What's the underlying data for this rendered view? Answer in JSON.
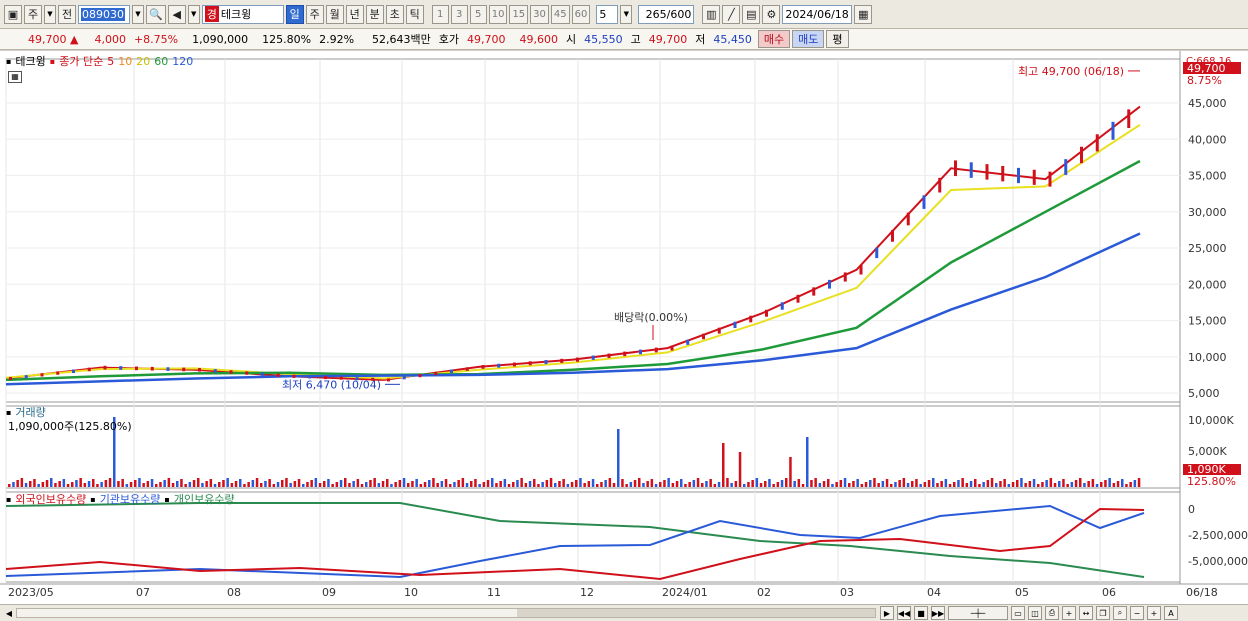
{
  "toolbar": {
    "market": "주",
    "period_btn": "전",
    "code": "089030",
    "stock_badge": "경",
    "stock_name": "테크윙",
    "periods": [
      "일",
      "주",
      "월",
      "년",
      "분",
      "초",
      "틱"
    ],
    "minute_options": [
      "1",
      "3",
      "5",
      "10",
      "15",
      "30",
      "45",
      "60"
    ],
    "minute_value": "5",
    "count_current": "265",
    "count_total": "/600",
    "date": "2024/06/18"
  },
  "quote": {
    "price": "49,700",
    "change_arrow": "▲",
    "change": "4,000",
    "change_pct": "+8.75%",
    "volume": "1,090,000",
    "volume_ratio": "125.80%",
    "turnover": "2.92%",
    "amount": "52,643백만",
    "bid_ask_label": "호가",
    "ask": "49,700",
    "bid": "49,600",
    "open_label": "시",
    "open": "45,550",
    "high_label": "고",
    "high": "49,700",
    "low_label": "저",
    "low": "45,450",
    "buy_label": "매수",
    "sell_label": "매도",
    "avg_label": "평"
  },
  "price_panel": {
    "name": "테크윙",
    "ma_label": "종가 단순",
    "ma_periods": [
      {
        "label": "5",
        "color": "#d0101a"
      },
      {
        "label": "10",
        "color": "#f08a1e"
      },
      {
        "label": "20",
        "color": "#e8e020"
      },
      {
        "label": "60",
        "color": "#1f9a3a"
      },
      {
        "label": "120",
        "color": "#2a5ad8"
      }
    ],
    "high_annotation": "최고 49,700 (06/18)",
    "low_annotation": "최저 6,470 (10/04)",
    "dividend_annotation": "배당락(0.00%)",
    "price_tag": "49,700",
    "prev_tag": "C:668.16",
    "pct_tag": "8.75%",
    "y_ticks": [
      "45,000",
      "40,000",
      "35,000",
      "30,000",
      "25,000",
      "20,000",
      "15,000",
      "10,000",
      "5,000"
    ]
  },
  "volume_panel": {
    "title": "거래량",
    "info": "1,090,000주(125.80%)",
    "y_ticks": [
      "10,000K",
      "5,000K"
    ],
    "tag": "1,090K",
    "tag_pct": "125.80%"
  },
  "holdings_panel": {
    "series": [
      {
        "name": "외국인보유수량",
        "color": "#d0101a"
      },
      {
        "name": "기관보유수량",
        "color": "#2a5ad8"
      },
      {
        "name": "개인보유수량",
        "color": "#2a8a50"
      }
    ],
    "y_ticks": [
      "0",
      "-2,500,000",
      "-5,000,000"
    ]
  },
  "x_axis": {
    "labels": [
      "2023/05",
      "07",
      "08",
      "09",
      "10",
      "11",
      "12",
      "2024/01",
      "02",
      "03",
      "04",
      "05",
      "06"
    ],
    "right_label": "06/18"
  },
  "chart_data": {
    "type": "line",
    "title": "",
    "x": [
      "2023/05",
      "07",
      "08",
      "09",
      "10",
      "11",
      "12",
      "2024/01",
      "02",
      "03",
      "04",
      "05",
      "06"
    ],
    "series": [
      {
        "name": "종가 단순 5",
        "values": [
          7000,
          8500,
          8200,
          7300,
          6800,
          8600,
          9600,
          11200,
          16000,
          22000,
          36000,
          34500,
          44500
        ]
      },
      {
        "name": "종가 단순 20",
        "values": [
          7100,
          8300,
          8400,
          7600,
          7000,
          8200,
          9200,
          10600,
          14800,
          19500,
          33000,
          33500,
          42000
        ]
      },
      {
        "name": "종가 단순 60",
        "values": [
          6800,
          7300,
          7700,
          7800,
          7500,
          7600,
          8200,
          9000,
          11000,
          14000,
          23000,
          30000,
          37000
        ]
      },
      {
        "name": "종가 단순 120",
        "values": [
          6200,
          6600,
          7000,
          7300,
          7400,
          7500,
          7800,
          8300,
          9500,
          11200,
          16500,
          21000,
          27000
        ]
      }
    ],
    "ylim": [
      4000,
      51000
    ],
    "highest": 49700,
    "lowest": 6470
  }
}
